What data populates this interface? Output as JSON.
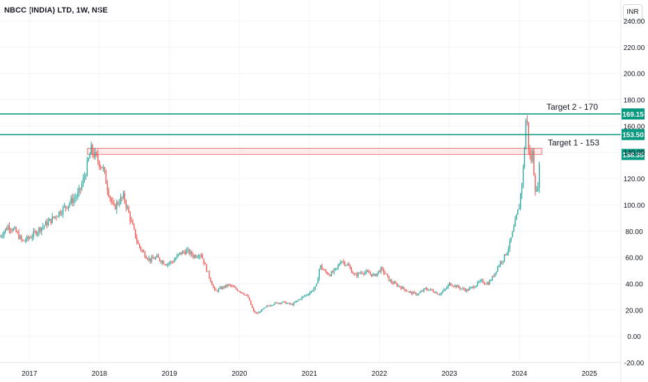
{
  "header": {
    "title": "NBCC (INDIA) LTD, 1W, NSE",
    "currency_button": "INR"
  },
  "colors": {
    "up": "#26a69a",
    "down": "#ef5350",
    "line": "#089981",
    "zone_fill": "#fde2e2",
    "zone_stroke": "#e57373"
  },
  "chart_data": {
    "type": "candlestick",
    "title": "NBCC (INDIA) LTD, 1W, NSE",
    "ylim": [
      -20,
      240
    ],
    "y_ticks": [
      -20,
      0,
      20,
      40,
      60,
      80,
      100,
      120,
      140,
      160,
      180,
      200,
      220,
      240
    ],
    "y_tick_labels": [
      "-20.00",
      "0.00",
      "20.00",
      "40.00",
      "60.00",
      "80.00",
      "100.00",
      "120.00",
      "140.00",
      "160.00",
      "180.00",
      "200.00",
      "220.00",
      "240.00"
    ],
    "x_ticks": [
      "2017",
      "2018",
      "2019",
      "2020",
      "2021",
      "2022",
      "2023",
      "2024",
      "2025"
    ],
    "x_range": [
      2016.58,
      2025.45
    ],
    "grid": true,
    "path_points": [
      [
        2016.58,
        76
      ],
      [
        2016.7,
        84
      ],
      [
        2016.8,
        80
      ],
      [
        2016.9,
        72
      ],
      [
        2017.0,
        75
      ],
      [
        2017.15,
        82
      ],
      [
        2017.3,
        88
      ],
      [
        2017.4,
        93
      ],
      [
        2017.5,
        98
      ],
      [
        2017.6,
        103
      ],
      [
        2017.7,
        108
      ],
      [
        2017.78,
        120
      ],
      [
        2017.85,
        135
      ],
      [
        2017.88,
        142
      ],
      [
        2017.95,
        136
      ],
      [
        2018.05,
        128
      ],
      [
        2018.12,
        112
      ],
      [
        2018.2,
        97
      ],
      [
        2018.28,
        103
      ],
      [
        2018.35,
        106
      ],
      [
        2018.45,
        88
      ],
      [
        2018.55,
        70
      ],
      [
        2018.62,
        64
      ],
      [
        2018.72,
        58
      ],
      [
        2018.82,
        60
      ],
      [
        2018.95,
        55
      ],
      [
        2019.05,
        57
      ],
      [
        2019.15,
        63
      ],
      [
        2019.25,
        65
      ],
      [
        2019.35,
        61
      ],
      [
        2019.45,
        63
      ],
      [
        2019.55,
        48
      ],
      [
        2019.65,
        34
      ],
      [
        2019.75,
        37
      ],
      [
        2019.85,
        39
      ],
      [
        2019.95,
        36
      ],
      [
        2020.05,
        33
      ],
      [
        2020.12,
        30
      ],
      [
        2020.2,
        19
      ],
      [
        2020.25,
        17
      ],
      [
        2020.32,
        20
      ],
      [
        2020.4,
        23
      ],
      [
        2020.5,
        25
      ],
      [
        2020.62,
        26
      ],
      [
        2020.75,
        24
      ],
      [
        2020.88,
        29
      ],
      [
        2021.0,
        33
      ],
      [
        2021.1,
        38
      ],
      [
        2021.15,
        54
      ],
      [
        2021.22,
        49
      ],
      [
        2021.3,
        47
      ],
      [
        2021.4,
        52
      ],
      [
        2021.45,
        58
      ],
      [
        2021.55,
        54
      ],
      [
        2021.65,
        46
      ],
      [
        2021.75,
        49
      ],
      [
        2021.85,
        48
      ],
      [
        2021.93,
        46
      ],
      [
        2022.02,
        51
      ],
      [
        2022.08,
        48
      ],
      [
        2022.15,
        42
      ],
      [
        2022.25,
        39
      ],
      [
        2022.35,
        36
      ],
      [
        2022.45,
        33
      ],
      [
        2022.55,
        32
      ],
      [
        2022.65,
        36
      ],
      [
        2022.75,
        35
      ],
      [
        2022.85,
        32
      ],
      [
        2022.95,
        36
      ],
      [
        2023.0,
        40
      ],
      [
        2023.1,
        38
      ],
      [
        2023.18,
        36
      ],
      [
        2023.25,
        35
      ],
      [
        2023.35,
        38
      ],
      [
        2023.45,
        42
      ],
      [
        2023.55,
        40
      ],
      [
        2023.62,
        45
      ],
      [
        2023.7,
        54
      ],
      [
        2023.78,
        60
      ],
      [
        2023.85,
        68
      ],
      [
        2023.92,
        82
      ],
      [
        2024.0,
        100
      ],
      [
        2024.06,
        130
      ],
      [
        2024.1,
        172
      ],
      [
        2024.13,
        145
      ],
      [
        2024.16,
        132
      ],
      [
        2024.19,
        140
      ],
      [
        2024.22,
        115
      ],
      [
        2024.25,
        108
      ],
      [
        2024.28,
        125
      ],
      [
        2024.3,
        138
      ]
    ],
    "horizontal_lines": [
      {
        "price": 169.15,
        "label": "169.15",
        "annotation": "Target 2 - 170"
      },
      {
        "price": 153.5,
        "label": "153.50",
        "annotation": "Target 1 - 153"
      }
    ],
    "zone": {
      "top": 143,
      "bottom": 138.35,
      "start": 2017.83,
      "end": 2024.32
    },
    "last_price_label": {
      "price": 138.35,
      "label": "138.35"
    }
  }
}
